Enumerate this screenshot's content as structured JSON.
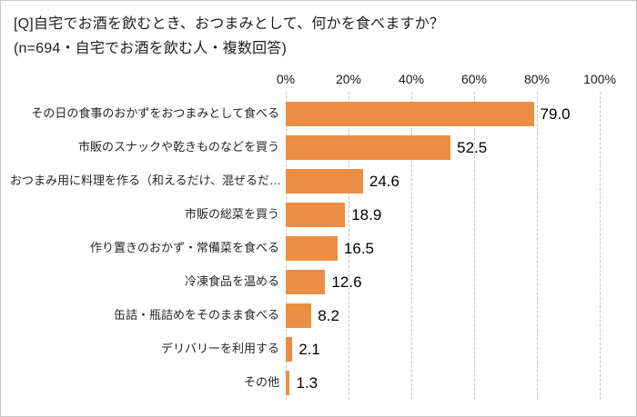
{
  "header": {
    "title_line1": "[Q]自宅でお酒を飲むとき、おつまみとして、何かを食べますか？",
    "title_line2": "(n=694・自宅でお酒を飲む人・複数回答)"
  },
  "chart_data": {
    "type": "bar",
    "orientation": "horizontal",
    "title": "[Q]自宅でお酒を飲むとき、おつまみとして、何かを食べますか？",
    "subtitle": "(n=694・自宅でお酒を飲む人・複数回答)",
    "categories": [
      "その日の食事のおかずをおつまみとして食べる",
      "市販のスナックや乾きものなどを買う",
      "おつまみ用に料理を作る（和えるだけ、混ぜるだ…",
      "市販の総菜を買う",
      "作り置きのおかず・常備菜を食べる",
      "冷凍食品を温める",
      "缶詰・瓶詰めをそのまま食べる",
      "デリバリーを利用する",
      "その他"
    ],
    "values": [
      79.0,
      52.5,
      24.6,
      18.9,
      16.5,
      12.6,
      8.2,
      2.1,
      1.3
    ],
    "value_labels": [
      "79.0",
      "52.5",
      "24.6",
      "18.9",
      "16.5",
      "12.6",
      "8.2",
      "2.1",
      "1.3"
    ],
    "x_ticks": [
      "0%",
      "20%",
      "40%",
      "60%",
      "80%",
      "100%"
    ],
    "xlim": [
      0,
      100
    ],
    "grid": "dashed-vertical",
    "bar_color": "#eb8e44",
    "legend": "none"
  }
}
